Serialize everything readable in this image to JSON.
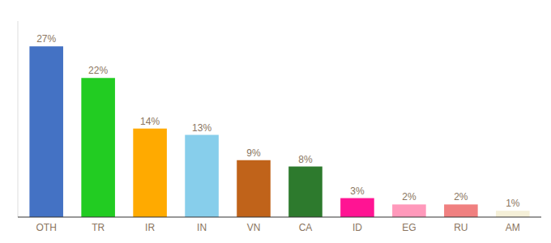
{
  "chart_data": {
    "type": "bar",
    "categories": [
      "OTH",
      "TR",
      "IR",
      "IN",
      "VN",
      "CA",
      "ID",
      "EG",
      "RU",
      "AM"
    ],
    "values": [
      27,
      22,
      14,
      13,
      9,
      8,
      3,
      2,
      2,
      1
    ],
    "value_labels": [
      "27%",
      "22%",
      "14%",
      "13%",
      "9%",
      "8%",
      "3%",
      "2%",
      "2%",
      "1%"
    ],
    "colors": [
      "#4472c4",
      "#22cc22",
      "#ffaa00",
      "#87ceeb",
      "#c0631a",
      "#2d7a2d",
      "#ff1493",
      "#ff99bb",
      "#f08080",
      "#f5f0d8"
    ],
    "ylim": [
      0,
      31
    ],
    "data_labels": true,
    "tick_labels": "x",
    "grid": false
  }
}
